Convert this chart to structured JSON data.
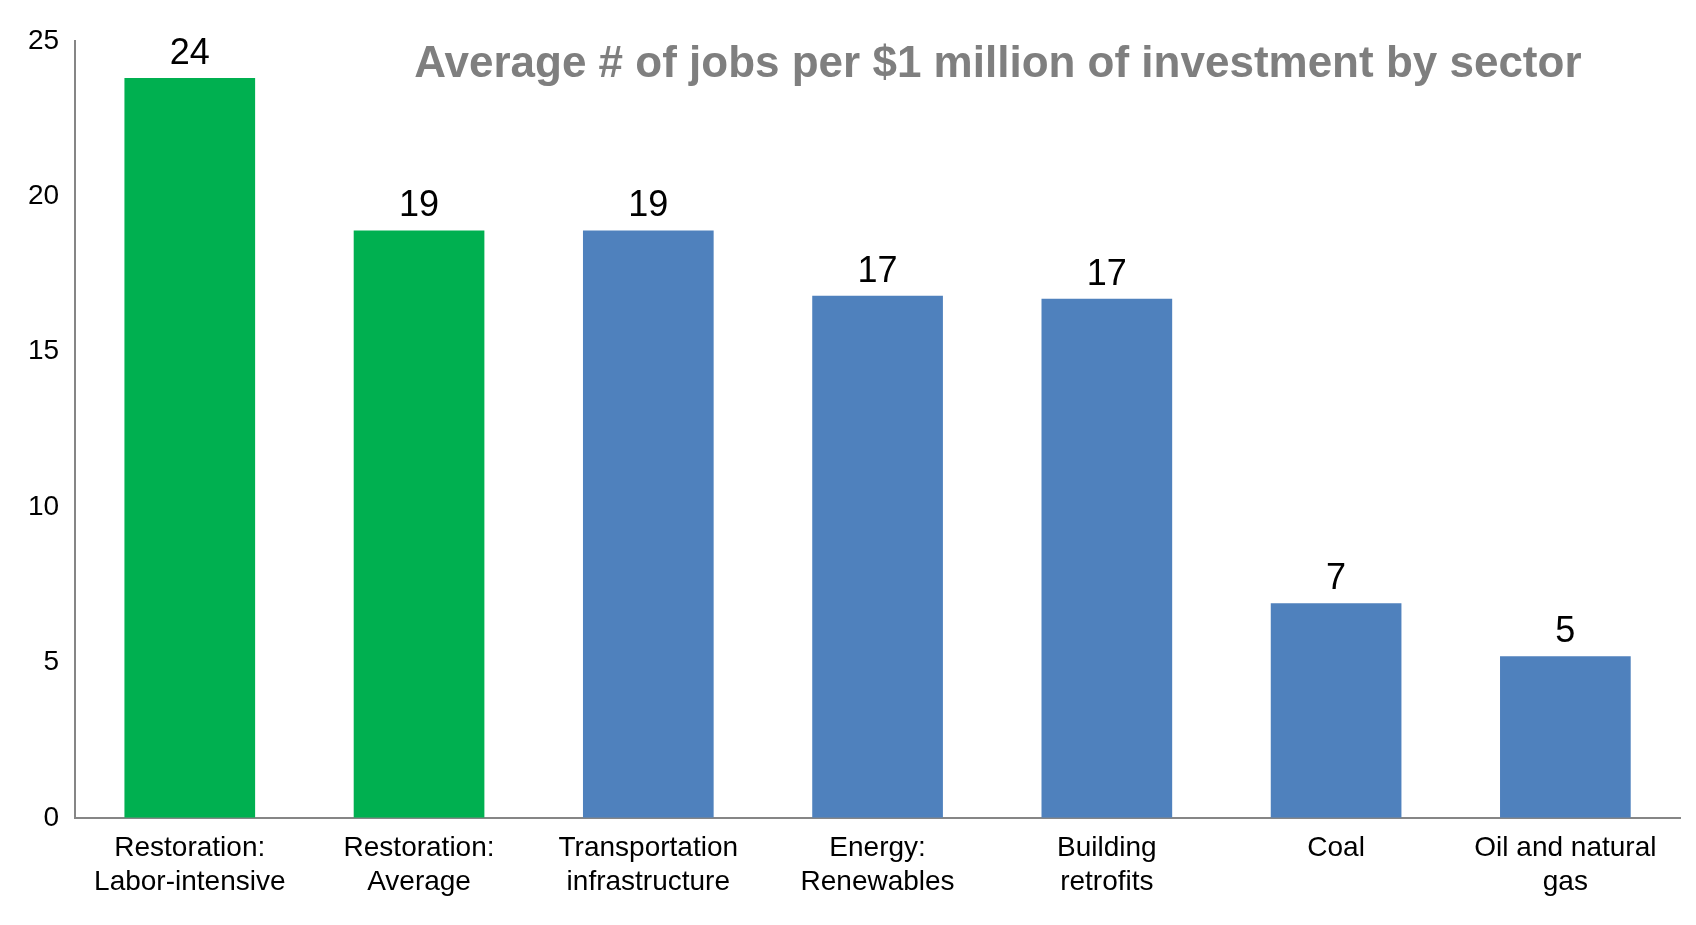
{
  "chart_data": {
    "type": "bar",
    "title": "Average # of jobs per $1 million of investment by sector",
    "categories": [
      "Restoration: Labor-intensive",
      "Restoration: Average",
      "Transportation infrastructure",
      "Energy: Renewables",
      "Building retrofits",
      "Coal",
      "Oil and natural gas"
    ],
    "values": [
      23.8,
      18.9,
      18.9,
      16.8,
      16.7,
      6.9,
      5.2
    ],
    "colors": [
      "#00b050",
      "#00b050",
      "#4f81bd",
      "#4f81bd",
      "#4f81bd",
      "#4f81bd",
      "#4f81bd"
    ],
    "value_labels": [
      "24",
      "19",
      "19",
      "17",
      "17",
      "7",
      "5"
    ],
    "ylim": [
      0,
      25
    ],
    "yticks": [
      0,
      5,
      10,
      15,
      20,
      25
    ],
    "grid": false,
    "legend": false
  }
}
